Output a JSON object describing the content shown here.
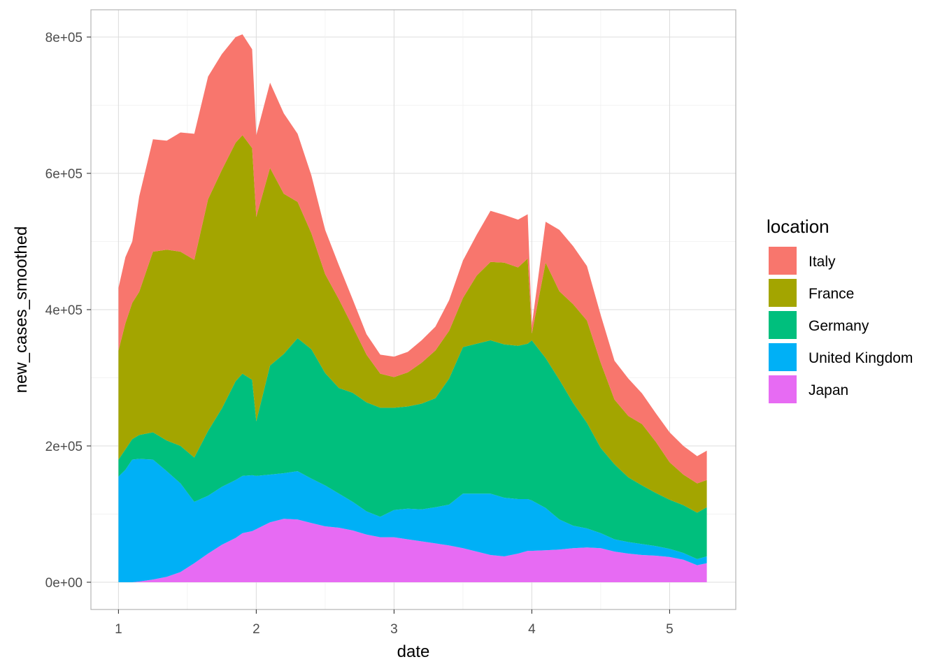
{
  "chart_data": {
    "type": "area",
    "stacked": true,
    "xlabel": "date",
    "ylabel": "new_cases_smoothed",
    "x_ticks": [
      1,
      2,
      3,
      4,
      5
    ],
    "x_tick_labels": [
      "1",
      "2",
      "3",
      "4",
      "5"
    ],
    "xlim": [
      0.8,
      5.48
    ],
    "y_ticks": [
      0,
      200000,
      400000,
      600000,
      800000
    ],
    "y_tick_labels": [
      "0e+00",
      "2e+05",
      "4e+05",
      "6e+05",
      "8e+05"
    ],
    "ylim": [
      -40000,
      840000
    ],
    "grid": true,
    "legend": {
      "title": "location",
      "position": "right"
    },
    "x": [
      1.0,
      1.05,
      1.1,
      1.15,
      1.25,
      1.35,
      1.45,
      1.55,
      1.65,
      1.75,
      1.85,
      1.9,
      1.97,
      2.0,
      2.1,
      2.2,
      2.3,
      2.4,
      2.5,
      2.6,
      2.7,
      2.8,
      2.9,
      3.0,
      3.1,
      3.2,
      3.3,
      3.4,
      3.5,
      3.6,
      3.7,
      3.8,
      3.9,
      3.97,
      4.0,
      4.1,
      4.2,
      4.3,
      4.4,
      4.5,
      4.6,
      4.7,
      4.8,
      4.9,
      5.0,
      5.1,
      5.2,
      5.27
    ],
    "series": [
      {
        "name": "Japan",
        "color": "#E76BF3",
        "values": [
          0,
          0,
          0,
          1000,
          4000,
          8000,
          15000,
          28000,
          42000,
          55000,
          65000,
          72000,
          75000,
          78000,
          88000,
          93000,
          92000,
          87000,
          82000,
          80000,
          76000,
          70000,
          66000,
          66000,
          63000,
          60000,
          57000,
          54000,
          50000,
          45000,
          40000,
          38000,
          42000,
          46000,
          46000,
          47000,
          48000,
          50000,
          51000,
          50000,
          45000,
          42000,
          40000,
          39000,
          37000,
          33000,
          25000,
          28000
        ]
      },
      {
        "name": "United Kingdom",
        "color": "#00B0F6",
        "values": [
          155000,
          165000,
          180000,
          180000,
          176000,
          155000,
          130000,
          90000,
          85000,
          85000,
          85000,
          84000,
          82000,
          78000,
          70000,
          67000,
          71000,
          65000,
          60000,
          50000,
          42000,
          34000,
          30000,
          40000,
          45000,
          47000,
          53000,
          60000,
          80000,
          85000,
          90000,
          86000,
          80000,
          76000,
          74000,
          62000,
          44000,
          33000,
          28000,
          22000,
          18000,
          17000,
          16000,
          14000,
          12000,
          10000,
          9000,
          10000
        ]
      },
      {
        "name": "Germany",
        "color": "#00BF7D",
        "values": [
          25000,
          30000,
          30000,
          35000,
          40000,
          45000,
          55000,
          65000,
          95000,
          115000,
          145000,
          150000,
          140000,
          80000,
          160000,
          175000,
          195000,
          190000,
          165000,
          155000,
          160000,
          160000,
          160000,
          150000,
          150000,
          155000,
          160000,
          185000,
          215000,
          220000,
          225000,
          225000,
          225000,
          228000,
          235000,
          220000,
          205000,
          180000,
          155000,
          125000,
          110000,
          95000,
          86000,
          78000,
          72000,
          70000,
          68000,
          72000
        ]
      },
      {
        "name": "France",
        "color": "#A3A500",
        "values": [
          160000,
          185000,
          200000,
          210000,
          265000,
          280000,
          285000,
          290000,
          340000,
          350000,
          350000,
          350000,
          340000,
          300000,
          290000,
          235000,
          200000,
          170000,
          145000,
          130000,
          97000,
          70000,
          50000,
          45000,
          50000,
          60000,
          70000,
          70000,
          72000,
          100000,
          115000,
          120000,
          115000,
          125000,
          10000,
          140000,
          130000,
          145000,
          150000,
          125000,
          95000,
          90000,
          90000,
          75000,
          55000,
          45000,
          43000,
          40000
        ]
      },
      {
        "name": "Italy",
        "color": "#F8766D",
        "values": [
          92000,
          97000,
          90000,
          140000,
          165000,
          160000,
          175000,
          185000,
          180000,
          170000,
          155000,
          148000,
          145000,
          120000,
          125000,
          118000,
          100000,
          85000,
          65000,
          50000,
          40000,
          30000,
          28000,
          30000,
          30000,
          33000,
          35000,
          45000,
          55000,
          60000,
          75000,
          70000,
          70000,
          65000,
          12000,
          60000,
          90000,
          85000,
          80000,
          70000,
          57000,
          55000,
          45000,
          42000,
          44000,
          42000,
          40000,
          43000
        ]
      }
    ]
  }
}
